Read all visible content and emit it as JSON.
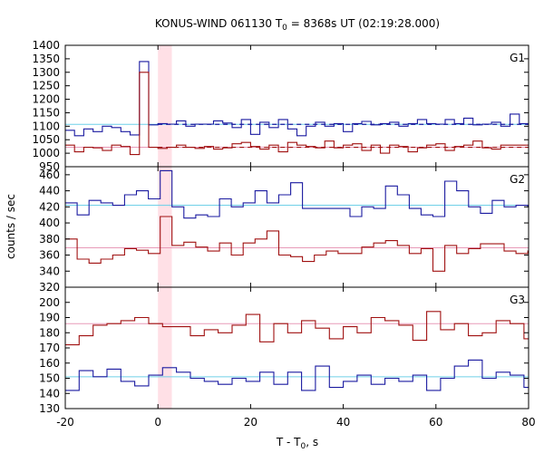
{
  "chart_data": {
    "type": "line",
    "title": "KONUS-WIND 061130 T",
    "title_sub": "0",
    "title_rest": " = 8368s UT (02:19:28.000)",
    "xlabel": "T - T",
    "xlabel_sub": "0",
    "xlabel_rest": ", s",
    "ylabel": "counts / sec",
    "xlim": [
      -20,
      80
    ],
    "x_ticks": [
      "-20",
      "0",
      "20",
      "40",
      "60",
      "80"
    ],
    "highlight_interval": [
      0.0,
      3.0
    ],
    "colors": {
      "blue": "#1a1aa0",
      "red": "#a01010",
      "mean_blue": "#6fd0e8",
      "mean_red": "#e89ab8",
      "highlight": "#ffe0e6",
      "g1_spike": "#7ab8e8",
      "g1_spike_red": "#f0a0a0"
    },
    "panels": [
      {
        "name": "G1",
        "ylim": [
          950,
          1400
        ],
        "y_ticks": [
          "950",
          "1000",
          "1050",
          "1100",
          "1150",
          "1200",
          "1250",
          "1300",
          "1350",
          "1400"
        ],
        "bin_start": -20,
        "bin_width": 2.0,
        "series": [
          {
            "color_key": "blue",
            "mean": 1107,
            "dashed_from": 0,
            "values": [
              1085,
              1065,
              1090,
              1080,
              1100,
              1095,
              1080,
              1068,
              1340,
              1105,
              1110,
              1108,
              1120,
              1100,
              1108,
              1108,
              1120,
              1112,
              1095,
              1125,
              1070,
              1115,
              1095,
              1125,
              1090,
              1065,
              1100,
              1115,
              1100,
              1110,
              1080,
              1110,
              1118,
              1105,
              1110,
              1115,
              1100,
              1110,
              1125,
              1110,
              1108,
              1125,
              1110,
              1130,
              1105,
              1108,
              1115,
              1100,
              1145,
              1110
            ]
          },
          {
            "color_key": "red",
            "mean": 1022,
            "dashed_from": 0,
            "values": [
              1030,
              1005,
              1022,
              1020,
              1010,
              1030,
              1025,
              995,
              1300,
              1022,
              1018,
              1022,
              1030,
              1022,
              1018,
              1025,
              1015,
              1020,
              1035,
              1040,
              1025,
              1015,
              1030,
              1005,
              1040,
              1030,
              1025,
              1020,
              1045,
              1020,
              1030,
              1035,
              1010,
              1030,
              1000,
              1030,
              1025,
              1005,
              1020,
              1030,
              1035,
              1010,
              1025,
              1030,
              1045,
              1020,
              1015,
              1030,
              1030,
              1030
            ]
          }
        ]
      },
      {
        "name": "G2",
        "ylim": [
          320,
          470
        ],
        "y_ticks": [
          "320",
          "340",
          "360",
          "380",
          "400",
          "420",
          "440",
          "460"
        ],
        "bin_start": -20,
        "bin_width": 2.56,
        "series": [
          {
            "color_key": "blue",
            "mean": 422,
            "values": [
              425,
              410,
              428,
              425,
              422,
              435,
              440,
              430,
              465,
              420,
              406,
              410,
              408,
              430,
              420,
              425,
              440,
              425,
              435,
              450,
              418,
              418,
              418,
              418,
              408,
              420,
              418,
              446,
              435,
              418,
              410,
              408,
              452,
              440,
              420,
              412,
              428,
              420,
              422,
              420
            ]
          },
          {
            "color_key": "red",
            "mean": 369,
            "values": [
              380,
              355,
              350,
              355,
              360,
              368,
              366,
              362,
              408,
              372,
              376,
              370,
              365,
              375,
              360,
              375,
              380,
              390,
              360,
              358,
              352,
              360,
              365,
              362,
              362,
              370,
              375,
              378,
              372,
              362,
              368,
              340,
              372,
              362,
              368,
              374,
              374,
              365,
              362,
              365
            ]
          }
        ]
      },
      {
        "name": "G3",
        "ylim": [
          130,
          210
        ],
        "y_ticks": [
          "130",
          "140",
          "150",
          "160",
          "170",
          "180",
          "190",
          "200"
        ],
        "bin_start": -20,
        "bin_width": 3.0,
        "series": [
          {
            "color_key": "red",
            "mean": 186,
            "values": [
              172,
              178,
              185,
              186,
              188,
              190,
              186,
              184,
              184,
              178,
              182,
              180,
              185,
              192,
              174,
              186,
              180,
              188,
              183,
              176,
              184,
              180,
              190,
              188,
              185,
              175,
              194,
              182,
              186,
              178,
              180,
              188,
              186,
              176,
              188,
              176,
              192,
              195,
              195
            ]
          },
          {
            "color_key": "blue",
            "mean": 151,
            "values": [
              142,
              155,
              151,
              156,
              148,
              145,
              152,
              157,
              154,
              150,
              148,
              146,
              150,
              148,
              154,
              146,
              154,
              142,
              158,
              144,
              148,
              152,
              146,
              150,
              148,
              152,
              142,
              150,
              158,
              162,
              150,
              154,
              152,
              144,
              158,
              145,
              152,
              144,
              144
            ]
          }
        ]
      }
    ]
  }
}
